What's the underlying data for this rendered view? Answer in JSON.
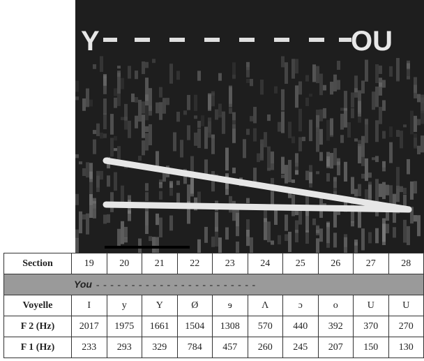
{
  "spectrogram": {
    "start_label": "Y",
    "end_label": "OU"
  },
  "table": {
    "header": [
      "Section",
      19,
      20,
      21,
      22,
      23,
      24,
      25,
      26,
      27,
      28
    ],
    "word_row": {
      "word": "You",
      "dashes": "- - - - - - - - - - - - - - - - - - - - - - -"
    },
    "rows": [
      [
        "Voyelle",
        "I",
        "y",
        "Y",
        "Ø",
        "ɘ",
        "Λ",
        "ɔ",
        "o",
        "U",
        "U"
      ],
      [
        "F 2 (Hz)",
        2017,
        1975,
        1661,
        1504,
        1308,
        570,
        440,
        392,
        370,
        270
      ],
      [
        "F 1 (Hz)",
        233,
        293,
        329,
        784,
        457,
        260,
        245,
        207,
        150,
        130
      ]
    ]
  }
}
